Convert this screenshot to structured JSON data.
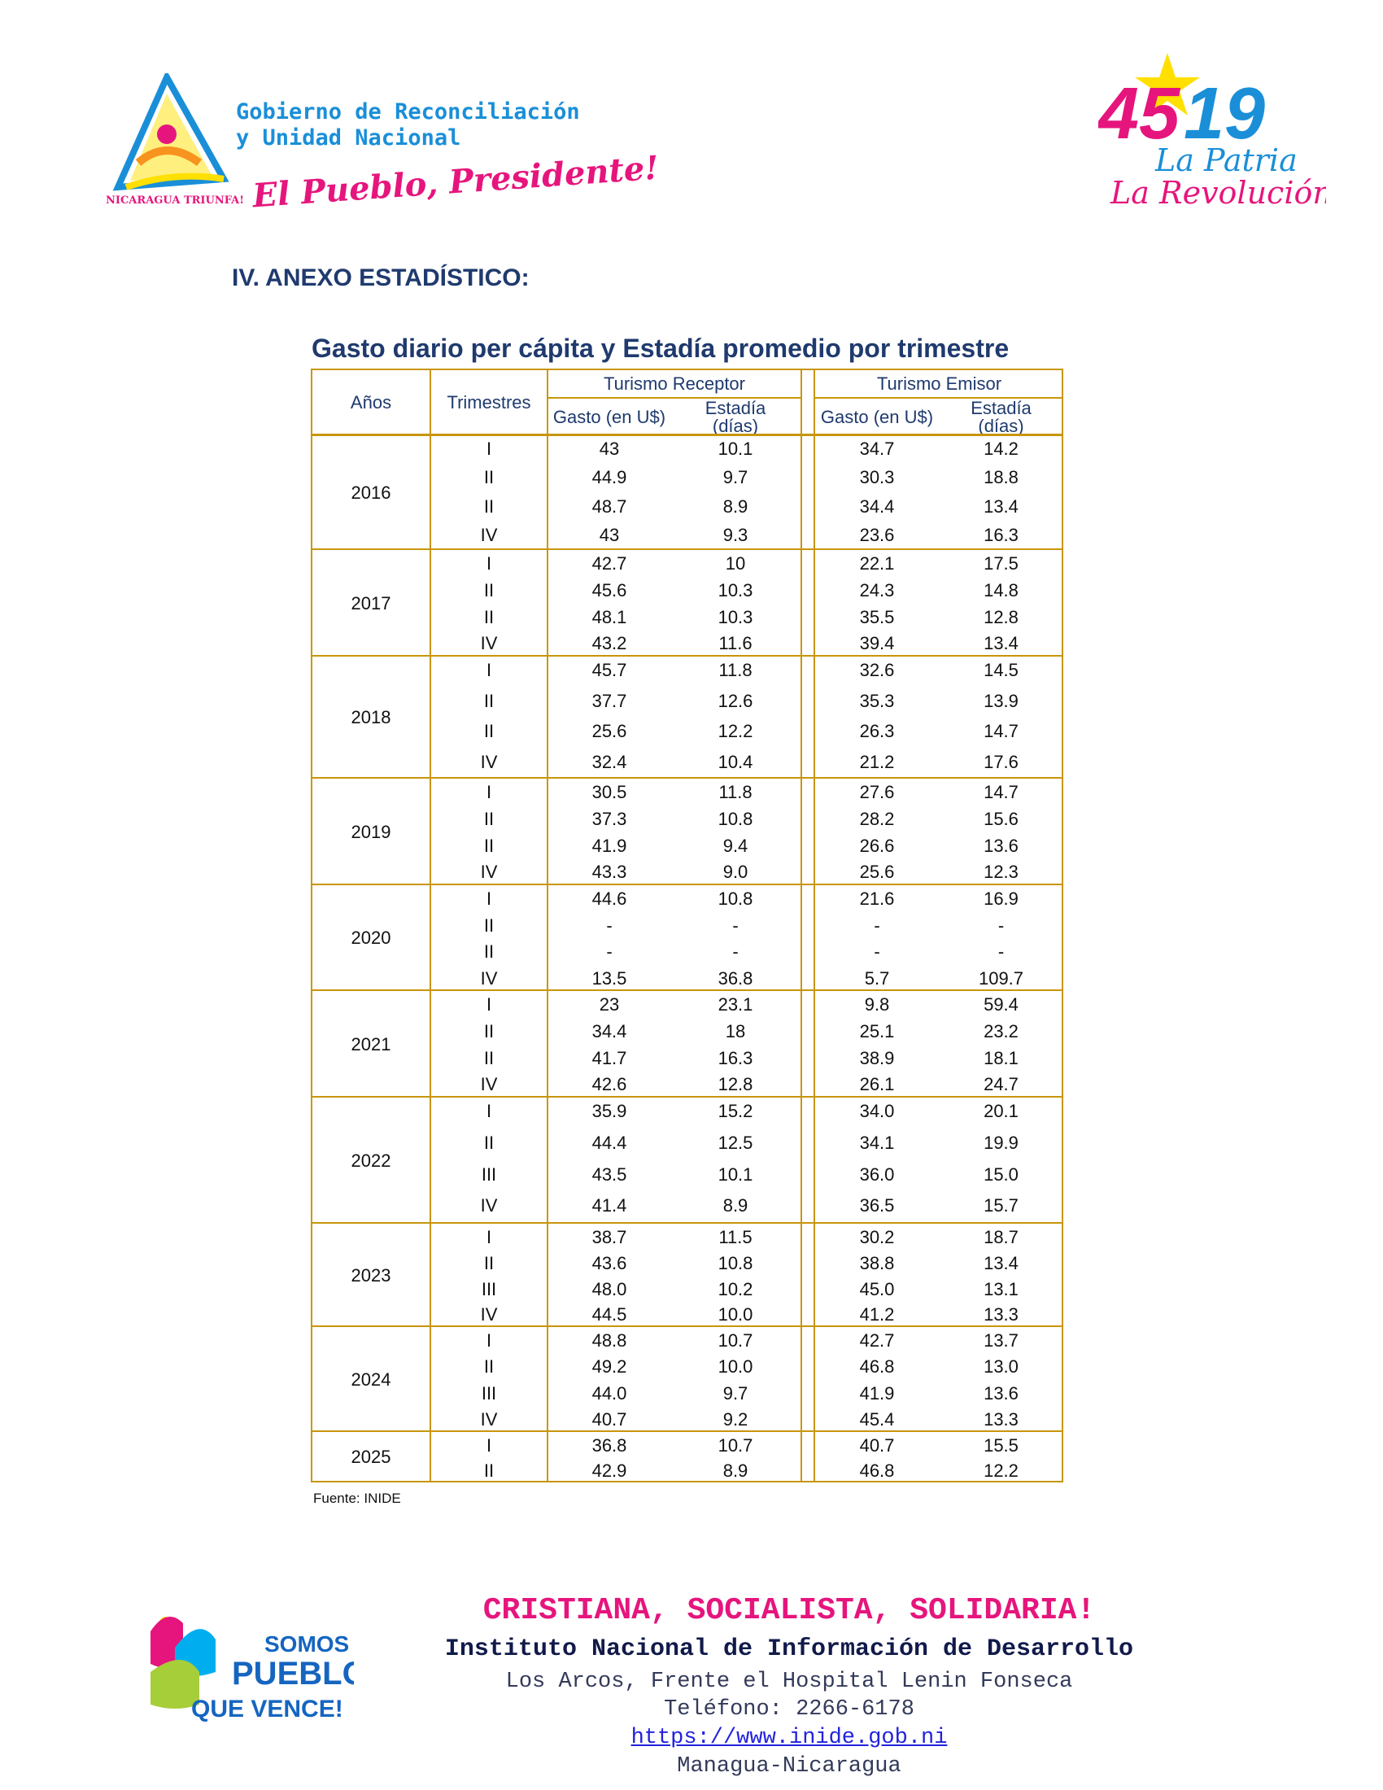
{
  "header": {
    "gov_line1": "Gobierno de Reconciliación",
    "gov_line2": "y Unidad Nacional",
    "slogan": "El Pueblo, Presidente!",
    "logo_left_text": "UNIDA, NICARAGUA TRIUNFA!",
    "logo_right_number": "4519",
    "logo_right_line1": "La Patria",
    "logo_right_line2": "La Revolución!"
  },
  "section_title": "IV. ANEXO ESTADÍSTICO:",
  "table": {
    "title": "Gasto diario per cápita y Estadía promedio por trimestre",
    "col_years": "Años",
    "col_quarters": "Trimestres",
    "group_receptor": "Turismo Receptor",
    "group_emisor": "Turismo Emisor",
    "col_gasto": "Gasto (en U$)",
    "col_estadia": "Estadía (días)",
    "groups": [
      {
        "year": "2016",
        "rows": [
          [
            "I",
            "43",
            "10.1",
            "34.7",
            "14.2"
          ],
          [
            "II",
            "44.9",
            "9.7",
            "30.3",
            "18.8"
          ],
          [
            "II",
            "48.7",
            "8.9",
            "34.4",
            "13.4"
          ],
          [
            "IV",
            "43",
            "9.3",
            "23.6",
            "16.3"
          ]
        ]
      },
      {
        "year": "2017",
        "rows": [
          [
            "I",
            "42.7",
            "10",
            "22.1",
            "17.5"
          ],
          [
            "II",
            "45.6",
            "10.3",
            "24.3",
            "14.8"
          ],
          [
            "II",
            "48.1",
            "10.3",
            "35.5",
            "12.8"
          ],
          [
            "IV",
            "43.2",
            "11.6",
            "39.4",
            "13.4"
          ]
        ]
      },
      {
        "year": "2018",
        "rows": [
          [
            "I",
            "45.7",
            "11.8",
            "32.6",
            "14.5"
          ],
          [
            "II",
            "37.7",
            "12.6",
            "35.3",
            "13.9"
          ],
          [
            "II",
            "25.6",
            "12.2",
            "26.3",
            "14.7"
          ],
          [
            "IV",
            "32.4",
            "10.4",
            "21.2",
            "17.6"
          ]
        ]
      },
      {
        "year": "2019",
        "rows": [
          [
            "I",
            "30.5",
            "11.8",
            "27.6",
            "14.7"
          ],
          [
            "II",
            "37.3",
            "10.8",
            "28.2",
            "15.6"
          ],
          [
            "II",
            "41.9",
            "9.4",
            "26.6",
            "13.6"
          ],
          [
            "IV",
            "43.3",
            "9.0",
            "25.6",
            "12.3"
          ]
        ]
      },
      {
        "year": "2020",
        "rows": [
          [
            "I",
            "44.6",
            "10.8",
            "21.6",
            "16.9"
          ],
          [
            "II",
            "-",
            "-",
            "-",
            "-"
          ],
          [
            "II",
            "-",
            "-",
            "-",
            "-"
          ],
          [
            "IV",
            "13.5",
            "36.8",
            "5.7",
            "109.7"
          ]
        ]
      },
      {
        "year": "2021",
        "rows": [
          [
            "I",
            "23",
            "23.1",
            "9.8",
            "59.4"
          ],
          [
            "II",
            "34.4",
            "18",
            "25.1",
            "23.2"
          ],
          [
            "II",
            "41.7",
            "16.3",
            "38.9",
            "18.1"
          ],
          [
            "IV",
            "42.6",
            "12.8",
            "26.1",
            "24.7"
          ]
        ]
      },
      {
        "year": "2022",
        "rows": [
          [
            "I",
            "35.9",
            "15.2",
            "34.0",
            "20.1"
          ],
          [
            "II",
            "44.4",
            "12.5",
            "34.1",
            "19.9"
          ],
          [
            "III",
            "43.5",
            "10.1",
            "36.0",
            "15.0"
          ],
          [
            "IV",
            "41.4",
            "8.9",
            "36.5",
            "15.7"
          ]
        ]
      },
      {
        "year": "2023",
        "rows": [
          [
            "I",
            "38.7",
            "11.5",
            "30.2",
            "18.7"
          ],
          [
            "II",
            "43.6",
            "10.8",
            "38.8",
            "13.4"
          ],
          [
            "III",
            "48.0",
            "10.2",
            "45.0",
            "13.1"
          ],
          [
            "IV",
            "44.5",
            "10.0",
            "41.2",
            "13.3"
          ]
        ]
      },
      {
        "year": "2024",
        "rows": [
          [
            "I",
            "48.8",
            "10.7",
            "42.7",
            "13.7"
          ],
          [
            "II",
            "49.2",
            "10.0",
            "46.8",
            "13.0"
          ],
          [
            "III",
            "44.0",
            "9.7",
            "41.9",
            "13.6"
          ],
          [
            "IV",
            "40.7",
            "9.2",
            "45.4",
            "13.3"
          ]
        ]
      },
      {
        "year": "2025",
        "rows": [
          [
            "I",
            "36.8",
            "10.7",
            "40.7",
            "15.5"
          ],
          [
            "II",
            "42.9",
            "8.9",
            "46.8",
            "12.2"
          ]
        ]
      }
    ],
    "source": "Fuente: INIDE"
  },
  "footer": {
    "motto": "CRISTIANA, SOCIALISTA, SOLIDARIA!",
    "institution": "Instituto Nacional de Información de Desarrollo",
    "address": "Los Arcos, Frente el Hospital Lenin Fonseca",
    "phone": "Teléfono: 2266-6178",
    "url": "https://www.inide.gob.ni",
    "city": "Managua-Nicaragua",
    "logo_text": "SOMOS PUEBLO QUE VENCE!"
  },
  "colors": {
    "navy": "#1f3a6e",
    "gold": "#c8960a",
    "pink": "#e6157d",
    "blue": "#1a8fd8"
  }
}
